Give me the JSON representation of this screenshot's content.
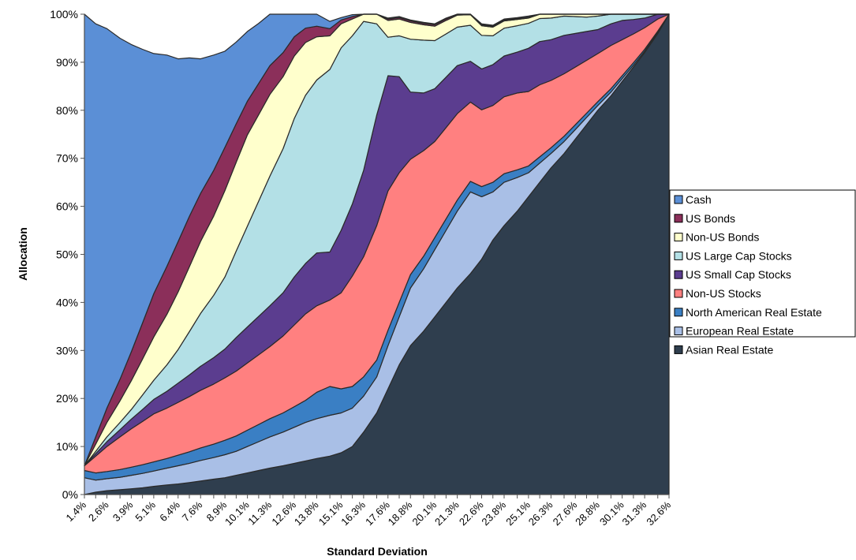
{
  "chart_data": {
    "type": "area",
    "stacked": true,
    "normalized_percent": true,
    "xlabel": "Standard Deviation",
    "ylabel": "Allocation",
    "ylim": [
      0,
      100
    ],
    "y_ticks": [
      "0%",
      "10%",
      "20%",
      "30%",
      "40%",
      "50%",
      "60%",
      "70%",
      "80%",
      "90%",
      "100%"
    ],
    "x_tick_labels": [
      "1.4%",
      "2.6%",
      "3.9%",
      "5.1%",
      "6.4%",
      "7.6%",
      "8.9%",
      "10.1%",
      "11.3%",
      "12.6%",
      "13.8%",
      "15.1%",
      "16.3%",
      "17.6%",
      "18.8%",
      "20.1%",
      "21.3%",
      "22.6%",
      "23.8%",
      "25.1%",
      "26.3%",
      "27.6%",
      "28.8%",
      "30.1%",
      "31.3%",
      "32.6%"
    ],
    "grid": false,
    "legend_position": "right",
    "x": [
      1.4,
      2.0,
      2.6,
      3.3,
      3.9,
      4.5,
      5.1,
      5.8,
      6.4,
      7.0,
      7.6,
      8.3,
      8.9,
      9.5,
      10.1,
      10.7,
      11.3,
      12.0,
      12.6,
      13.2,
      13.8,
      14.5,
      15.1,
      15.7,
      16.3,
      17.0,
      17.6,
      18.2,
      18.8,
      19.5,
      20.1,
      20.7,
      21.3,
      22.0,
      22.6,
      23.2,
      23.8,
      24.5,
      25.1,
      25.7,
      26.3,
      27.0,
      27.6,
      28.2,
      28.8,
      29.5,
      30.1,
      30.7,
      31.3,
      32.0,
      32.6
    ],
    "series": [
      {
        "name": "Asian Real Estate",
        "color": "#2f3e4e",
        "values": [
          0.0,
          0.5,
          0.8,
          1.0,
          1.2,
          1.4,
          1.7,
          2.0,
          2.2,
          2.5,
          2.8,
          3.2,
          3.5,
          4.0,
          4.5,
          5.0,
          5.5,
          6.0,
          6.5,
          7.0,
          7.5,
          8.0,
          8.7,
          10.0,
          13.0,
          17.0,
          22.0,
          27.0,
          31.0,
          34.0,
          37.0,
          40.0,
          43.0,
          46.0,
          49.0,
          53.0,
          56.0,
          59.0,
          62.0,
          65.0,
          68.0,
          71.0,
          74.0,
          77.0,
          80.0,
          83.0,
          86.0,
          89.0,
          92.0,
          96.0,
          100.0
        ]
      },
      {
        "name": "European Real Estate",
        "color": "#a9bfe6",
        "values": [
          3.5,
          2.5,
          2.5,
          2.6,
          2.8,
          3.0,
          3.2,
          3.5,
          3.8,
          4.0,
          4.3,
          4.5,
          4.8,
          5.0,
          5.5,
          6.0,
          6.5,
          7.0,
          7.5,
          8.0,
          8.3,
          8.5,
          8.3,
          8.0,
          7.5,
          7.5,
          9.0,
          10.0,
          12.0,
          13.0,
          14.0,
          15.0,
          16.0,
          17.0,
          13.0,
          10.0,
          9.0,
          7.0,
          5.0,
          4.0,
          3.0,
          2.5,
          2.0,
          1.5,
          1.0,
          0.8,
          0.6,
          0.4,
          0.3,
          0.2,
          0.0
        ]
      },
      {
        "name": "North American Real Estate",
        "color": "#3a7fc4",
        "values": [
          1.5,
          1.5,
          1.5,
          1.6,
          1.7,
          1.8,
          1.9,
          2.0,
          2.2,
          2.4,
          2.6,
          2.8,
          3.0,
          3.2,
          3.4,
          3.6,
          3.8,
          4.0,
          4.3,
          4.6,
          5.5,
          6.0,
          5.0,
          4.5,
          4.0,
          3.5,
          3.2,
          3.0,
          2.8,
          2.6,
          2.5,
          2.4,
          2.3,
          2.2,
          2.1,
          2.0,
          1.8,
          1.6,
          1.4,
          1.3,
          1.2,
          1.1,
          1.0,
          0.9,
          0.8,
          0.7,
          0.6,
          0.5,
          0.4,
          0.3,
          0.0
        ]
      },
      {
        "name": "Non-US Stocks",
        "color": "#ff8080",
        "values": [
          1.0,
          3.5,
          5.2,
          6.8,
          8.0,
          9.0,
          10.0,
          10.5,
          11.0,
          11.5,
          12.0,
          12.5,
          13.0,
          13.5,
          14.0,
          14.5,
          15.0,
          16.0,
          17.0,
          18.0,
          18.0,
          18.0,
          20.0,
          23.0,
          25.0,
          28.0,
          29.0,
          27.0,
          24.0,
          22.0,
          20.0,
          19.0,
          18.0,
          16.5,
          16.0,
          16.0,
          16.0,
          16.0,
          15.5,
          15.0,
          14.0,
          13.0,
          12.0,
          11.0,
          10.0,
          9.0,
          7.5,
          6.0,
          4.5,
          2.5,
          0.0
        ]
      },
      {
        "name": "US Small Cap Stocks",
        "color": "#5b3d8f",
        "values": [
          0.0,
          0.5,
          1.0,
          1.5,
          2.0,
          2.5,
          3.0,
          3.5,
          4.0,
          4.5,
          5.0,
          5.5,
          6.0,
          7.0,
          7.5,
          8.0,
          8.5,
          9.0,
          10.0,
          10.5,
          11.0,
          10.0,
          13.0,
          15.0,
          18.0,
          23.0,
          24.0,
          20.0,
          14.0,
          12.0,
          11.0,
          10.5,
          10.0,
          8.5,
          8.5,
          8.5,
          8.5,
          8.5,
          9.0,
          9.0,
          8.5,
          8.0,
          7.0,
          6.0,
          5.0,
          4.5,
          4.0,
          3.0,
          2.0,
          1.0,
          0.0
        ]
      },
      {
        "name": "US Large Cap Stocks",
        "color": "#b3e0e6",
        "values": [
          0.0,
          0.5,
          1.0,
          1.5,
          2.0,
          3.0,
          4.0,
          5.5,
          7.0,
          9.0,
          11.0,
          13.0,
          15.0,
          18.0,
          21.0,
          24.0,
          27.0,
          30.0,
          33.0,
          35.0,
          36.0,
          38.0,
          38.0,
          35.0,
          31.0,
          19.0,
          8.0,
          8.5,
          11.0,
          11.0,
          10.0,
          9.0,
          8.0,
          7.5,
          7.0,
          6.0,
          5.8,
          5.5,
          5.2,
          4.8,
          4.5,
          4.0,
          3.5,
          3.0,
          2.8,
          2.5,
          2.0,
          1.5,
          1.0,
          0.5,
          0.0
        ]
      },
      {
        "name": "Non-US Bonds",
        "color": "#ffffcc",
        "values": [
          0.0,
          1.5,
          3.0,
          4.5,
          6.0,
          7.5,
          9.0,
          10.5,
          12.0,
          13.5,
          15.0,
          16.5,
          18.0,
          18.5,
          19.0,
          18.0,
          17.0,
          15.0,
          13.0,
          11.0,
          9.0,
          7.0,
          5.0,
          3.5,
          2.5,
          3.0,
          3.5,
          3.5,
          3.5,
          3.2,
          3.0,
          2.8,
          2.5,
          2.2,
          2.0,
          1.8,
          1.5,
          1.3,
          1.1,
          1.0,
          0.9,
          0.8,
          0.7,
          0.6,
          0.5,
          0.4,
          0.3,
          0.2,
          0.1,
          0.1,
          0.0
        ]
      },
      {
        "name": "US Bonds",
        "color": "#8b2f5a",
        "values": [
          0.0,
          1.5,
          3.0,
          4.5,
          6.0,
          7.5,
          9.0,
          10.0,
          10.5,
          10.5,
          10.0,
          9.5,
          9.0,
          8.0,
          7.0,
          6.5,
          6.0,
          5.0,
          4.0,
          3.0,
          2.2,
          1.5,
          0.8,
          0.5,
          0.4,
          0.3,
          0.3,
          0.3,
          0.3,
          0.3,
          0.3,
          0.3,
          0.3,
          0.3,
          0.2,
          0.2,
          0.2,
          0.2,
          0.2,
          0.2,
          0.2,
          0.2,
          0.2,
          0.1,
          0.1,
          0.1,
          0.1,
          0.1,
          0.1,
          0.0,
          0.0
        ]
      },
      {
        "name": "Cash",
        "color": "#5b8fd6",
        "values": [
          94.0,
          86.0,
          79.0,
          71.0,
          64.0,
          57.0,
          50.0,
          44.0,
          38.0,
          33.0,
          28.0,
          24.0,
          20.0,
          17.0,
          14.5,
          12.5,
          11.0,
          9.0,
          7.0,
          5.0,
          3.0,
          1.5,
          0.5,
          0.4,
          0.3,
          0.2,
          0.2,
          0.2,
          0.2,
          0.2,
          0.2,
          0.2,
          0.2,
          0.2,
          0.2,
          0.2,
          0.2,
          0.2,
          0.2,
          0.2,
          0.2,
          0.2,
          0.2,
          0.2,
          0.2,
          0.2,
          0.2,
          0.2,
          0.2,
          0.2,
          0.0
        ]
      }
    ],
    "legend_order": [
      "Cash",
      "US Bonds",
      "Non-US Bonds",
      "US Large Cap Stocks",
      "US Small Cap Stocks",
      "Non-US Stocks",
      "North American Real Estate",
      "European Real Estate",
      "Asian Real Estate"
    ]
  }
}
